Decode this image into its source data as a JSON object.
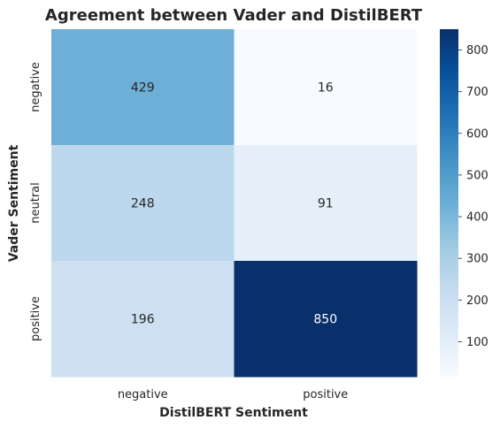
{
  "chart_data": {
    "type": "heatmap",
    "title": "Agreement between Vader and DistilBERT",
    "xlabel": "DistilBERT Sentiment",
    "ylabel": "Vader Sentiment",
    "x_categories": [
      "negative",
      "positive"
    ],
    "y_categories": [
      "negative",
      "neutral",
      "positive"
    ],
    "values": [
      [
        429,
        16
      ],
      [
        248,
        91
      ],
      [
        196,
        850
      ]
    ],
    "colormap": "Blues",
    "colorbar": {
      "min": 16,
      "max": 850,
      "ticks": [
        100,
        200,
        300,
        400,
        500,
        600,
        700,
        800
      ]
    },
    "grid": false,
    "annotations": true
  }
}
